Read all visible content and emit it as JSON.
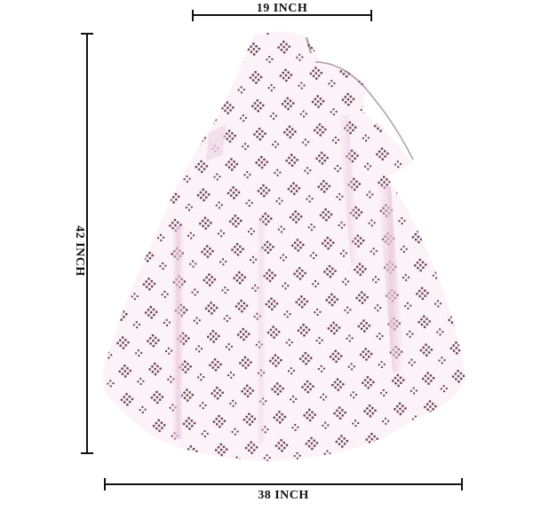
{
  "image": {
    "subject": "product-photo-skirt",
    "dimensions": {
      "top": "19 INCH",
      "side": "42 INCH",
      "bottom": "38 INCH"
    },
    "colors": {
      "background": "#ffffff",
      "fabric": "#fbf3f8",
      "fabric_shade": "#efd6e6",
      "motif": "#5a2a3f",
      "dimension_line": "#111111"
    }
  }
}
